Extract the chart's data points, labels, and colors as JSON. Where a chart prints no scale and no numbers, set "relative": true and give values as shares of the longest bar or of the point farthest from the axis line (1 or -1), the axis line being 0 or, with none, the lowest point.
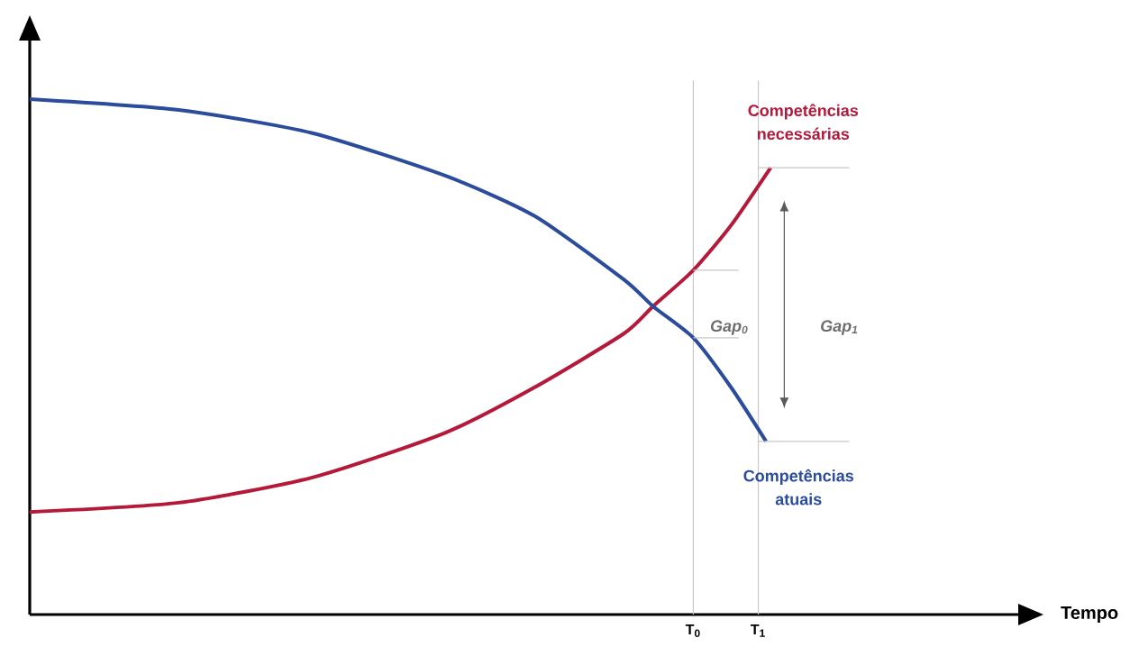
{
  "chart_data": {
    "type": "line",
    "relative": true,
    "xlabel": "Tempo",
    "xlim": [
      -10.21,
      5
    ],
    "xticks": [
      {
        "value": 0,
        "label": "T$_{0}$"
      },
      {
        "value": 1,
        "label": "T$_{1}$"
      }
    ],
    "series": [
      {
        "name": "Competências necessárias",
        "color": "#b5193a",
        "x": [
          -10.21,
          -7.92,
          -5.86,
          -3.81,
          -2.44,
          -1.07,
          -0.62,
          0,
          0.58,
          1.19
        ],
        "values": [
          0.199,
          0.217,
          0.266,
          0.353,
          0.441,
          0.545,
          0.598,
          0.668,
          0.755,
          0.867
        ]
      },
      {
        "name": "Competências atuais",
        "color": "#2b4c9b",
        "x": [
          -10.21,
          -7.92,
          -5.86,
          -3.81,
          -2.44,
          -1.07,
          -0.62,
          0,
          0.58,
          1.12
        ],
        "values": [
          1.0,
          0.979,
          0.934,
          0.851,
          0.773,
          0.65,
          0.598,
          0.537,
          0.441,
          0.336
        ]
      }
    ],
    "ref_lines": [
      {
        "axis": "x",
        "value": 0,
        "color": "#c8c8c8"
      },
      {
        "axis": "x",
        "value": 1,
        "color": "#c8c8c8"
      }
    ],
    "annotations": [
      "Gap$_{0}$",
      "Gap$_{1}$"
    ],
    "marker": "none"
  }
}
